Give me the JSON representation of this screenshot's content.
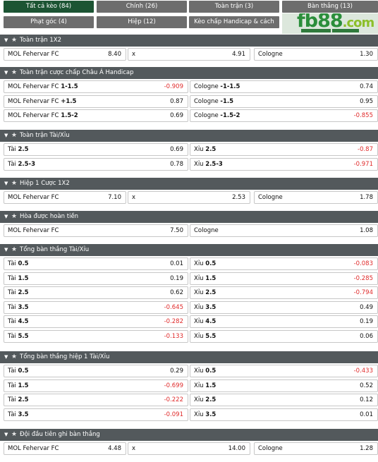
{
  "tabs": [
    {
      "label": "Tất cả kèo (84)",
      "active": true
    },
    {
      "label": "Chính (26)"
    },
    {
      "label": "Toàn trận (3)"
    },
    {
      "label": "Bàn thắng (13)"
    },
    {
      "label": "Phạt góc (4)"
    },
    {
      "label": "Hiệp (12)"
    },
    {
      "label": "Kèo chấp Handicap & cách biệt (3)"
    }
  ],
  "logo": {
    "text_main": "fb88",
    "text_suffix": ".com"
  },
  "sections": [
    {
      "title": "Toàn trận 1X2",
      "layout": "three",
      "rows": [
        [
          {
            "name": "MOL Fehervar FC",
            "odds": "8.40"
          },
          {
            "name": "x",
            "odds": "4.91"
          },
          {
            "name": "Cologne",
            "odds": "1.30"
          }
        ]
      ]
    },
    {
      "title": "Toàn trận cược chấp Châu Á Handicap",
      "layout": "two",
      "rows": [
        [
          {
            "name": "MOL Fehervar FC",
            "line": "1-1.5",
            "odds": "-0.909"
          },
          {
            "name": "Cologne",
            "line": "-1-1.5",
            "odds": "0.74"
          }
        ],
        [
          {
            "name": "MOL Fehervar FC",
            "line": "+1.5",
            "odds": "0.87"
          },
          {
            "name": "Cologne",
            "line": "-1.5",
            "odds": "0.95"
          }
        ],
        [
          {
            "name": "MOL Fehervar FC",
            "line": "1.5-2",
            "odds": "0.69"
          },
          {
            "name": "Cologne",
            "line": "-1.5-2",
            "odds": "-0.855"
          }
        ]
      ]
    },
    {
      "title": "Toàn trận Tài/Xỉu",
      "layout": "two",
      "rows": [
        [
          {
            "name": "Tài",
            "line": "2.5",
            "odds": "0.69"
          },
          {
            "name": "Xỉu",
            "line": "2.5",
            "odds": "-0.87"
          }
        ],
        [
          {
            "name": "Tài",
            "line": "2.5-3",
            "odds": "0.78"
          },
          {
            "name": "Xỉu",
            "line": "2.5-3",
            "odds": "-0.971"
          }
        ]
      ]
    },
    {
      "title": "Hiệp 1 Cược 1X2",
      "layout": "three",
      "rows": [
        [
          {
            "name": "MOL Fehervar FC",
            "odds": "7.10"
          },
          {
            "name": "x",
            "odds": "2.53"
          },
          {
            "name": "Cologne",
            "odds": "1.78"
          }
        ]
      ]
    },
    {
      "title": "Hòa được hoàn tiền",
      "layout": "two",
      "rows": [
        [
          {
            "name": "MOL Fehervar FC",
            "odds": "7.50"
          },
          {
            "name": "Cologne",
            "odds": "1.08"
          }
        ]
      ]
    },
    {
      "title": "Tổng bàn thắng Tài/Xỉu",
      "layout": "two",
      "rows": [
        [
          {
            "name": "Tài",
            "line": "0.5",
            "odds": "0.01"
          },
          {
            "name": "Xỉu",
            "line": "0.5",
            "odds": "-0.083"
          }
        ],
        [
          {
            "name": "Tài",
            "line": "1.5",
            "odds": "0.19"
          },
          {
            "name": "Xỉu",
            "line": "1.5",
            "odds": "-0.285"
          }
        ],
        [
          {
            "name": "Tài",
            "line": "2.5",
            "odds": "0.62"
          },
          {
            "name": "Xỉu",
            "line": "2.5",
            "odds": "-0.794"
          }
        ],
        [
          {
            "name": "Tài",
            "line": "3.5",
            "odds": "-0.645"
          },
          {
            "name": "Xỉu",
            "line": "3.5",
            "odds": "0.49"
          }
        ],
        [
          {
            "name": "Tài",
            "line": "4.5",
            "odds": "-0.282"
          },
          {
            "name": "Xỉu",
            "line": "4.5",
            "odds": "0.19"
          }
        ],
        [
          {
            "name": "Tài",
            "line": "5.5",
            "odds": "-0.133"
          },
          {
            "name": "Xỉu",
            "line": "5.5",
            "odds": "0.06"
          }
        ]
      ]
    },
    {
      "title": "Tổng bàn thắng hiệp 1 Tài/Xỉu",
      "layout": "two",
      "rows": [
        [
          {
            "name": "Tài",
            "line": "0.5",
            "odds": "0.29"
          },
          {
            "name": "Xỉu",
            "line": "0.5",
            "odds": "-0.433"
          }
        ],
        [
          {
            "name": "Tài",
            "line": "1.5",
            "odds": "-0.699"
          },
          {
            "name": "Xỉu",
            "line": "1.5",
            "odds": "0.52"
          }
        ],
        [
          {
            "name": "Tài",
            "line": "2.5",
            "odds": "-0.222"
          },
          {
            "name": "Xỉu",
            "line": "2.5",
            "odds": "0.12"
          }
        ],
        [
          {
            "name": "Tài",
            "line": "3.5",
            "odds": "-0.091"
          },
          {
            "name": "Xỉu",
            "line": "3.5",
            "odds": "0.01"
          }
        ]
      ]
    },
    {
      "title": "Đội đầu tiên ghi bàn thắng",
      "layout": "three",
      "rows": [
        [
          {
            "name": "MOL Fehervar FC",
            "odds": "4.48"
          },
          {
            "name": "x",
            "odds": "14.00"
          },
          {
            "name": "Cologne",
            "odds": "1.28"
          }
        ]
      ]
    }
  ],
  "colors": {
    "negative": "#e02b2b",
    "header": "#53595c",
    "tab_active": "#1c5433",
    "tab": "#6d6d6d"
  }
}
